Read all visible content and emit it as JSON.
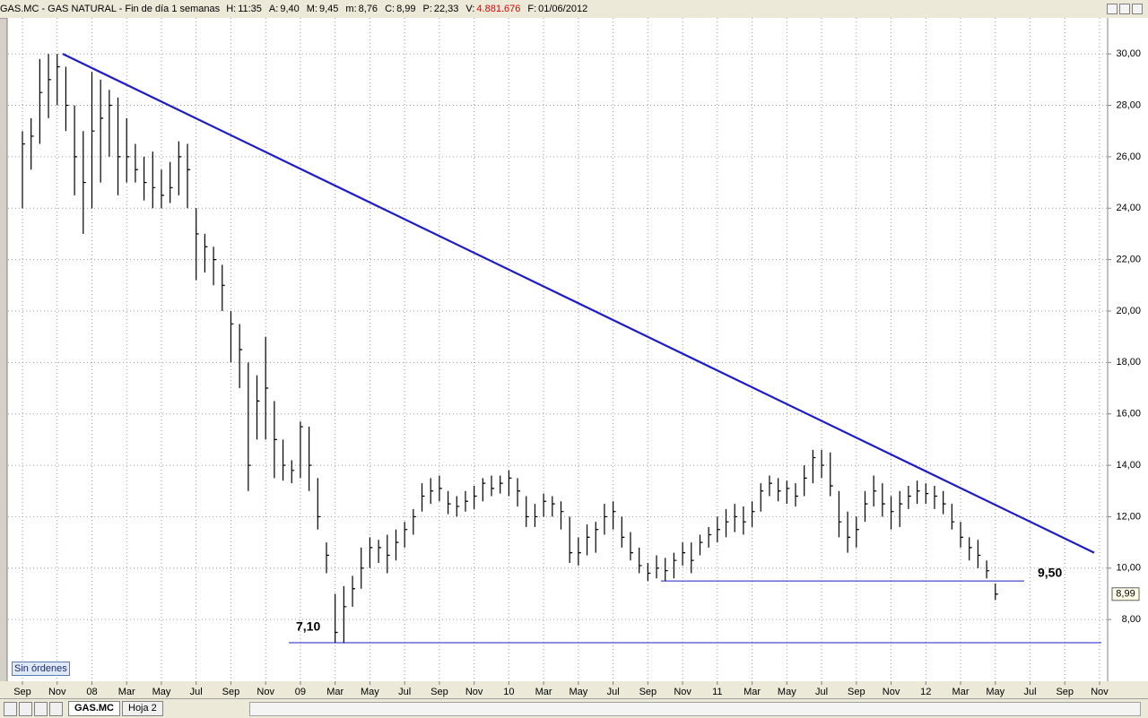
{
  "header": {
    "symbol_line": "GAS.MC - GAS NATURAL - Fin de día 1 semanas",
    "fields": [
      {
        "key": "H:",
        "value": "11:35"
      },
      {
        "key": "A:",
        "value": "9,40"
      },
      {
        "key": "M:",
        "value": "9,45"
      },
      {
        "key": "m:",
        "value": "8,76"
      },
      {
        "key": "C:",
        "value": "8,99"
      },
      {
        "key": "P:",
        "value": "22,33"
      },
      {
        "key": "V:",
        "value": "4.881.676"
      },
      {
        "key": "F:",
        "value": "01/06/2012"
      }
    ]
  },
  "chart_data": {
    "type": "ohlc",
    "categories": [
      "Sep",
      null,
      null,
      null,
      "Nov",
      null,
      null,
      null,
      "08",
      null,
      null,
      null,
      "Mar",
      null,
      null,
      null,
      "May",
      null,
      null,
      null,
      "Jul",
      null,
      null,
      null,
      "Sep",
      null,
      null,
      null,
      "Nov",
      null,
      null,
      null,
      "09",
      null,
      null,
      null,
      "Mar",
      null,
      null,
      null,
      "May",
      null,
      null,
      null,
      "Jul",
      null,
      null,
      null,
      "Sep",
      null,
      null,
      null,
      "Nov",
      null,
      null,
      null,
      "10",
      null,
      null,
      null,
      "Mar",
      null,
      null,
      null,
      "May",
      null,
      null,
      null,
      "Jul",
      null,
      null,
      null,
      "Sep",
      null,
      null,
      null,
      "Nov",
      null,
      null,
      null,
      "11",
      null,
      null,
      null,
      "Mar",
      null,
      null,
      null,
      "May",
      null,
      null,
      null,
      "Jul",
      null,
      null,
      null,
      "Sep",
      null,
      null,
      null,
      "Nov",
      null,
      null,
      null,
      "12",
      null,
      null,
      null,
      "Mar",
      null,
      null,
      null,
      "May",
      null,
      null,
      null,
      "Jul",
      null,
      null,
      null,
      "Sep",
      null,
      null,
      null,
      "Nov"
    ],
    "high": [
      27,
      27.5,
      29.8,
      30,
      30,
      29.5,
      28,
      27,
      29.3,
      29,
      28.6,
      28.3,
      27.5,
      26.5,
      26,
      26.2,
      25.5,
      25.8,
      26.6,
      26.5,
      24,
      23,
      22.5,
      21.8,
      20,
      19.5,
      18,
      17.5,
      19,
      16.5,
      15,
      14.2,
      15.7,
      15.5,
      13.5,
      11,
      9,
      9.3,
      9.7,
      10.8,
      11.2,
      11.1,
      11.3,
      11.5,
      11.8,
      12.3,
      13.3,
      13.5,
      13.6,
      13,
      12.8,
      13,
      13.2,
      13.5,
      13.6,
      13.6,
      13.8,
      13.5,
      12.8,
      12.5,
      12.9,
      12.8,
      12.6,
      12,
      11.2,
      11.7,
      11.8,
      12.5,
      12.6,
      12,
      11.4,
      10.8,
      10.2,
      10.5,
      10.4,
      10.6,
      11,
      11,
      11.3,
      11.6,
      12,
      12.3,
      12.5,
      12.4,
      12.6,
      13.3,
      13.6,
      13.5,
      13.4,
      13.3,
      14,
      14.6,
      14.6,
      14.5,
      13,
      12.2,
      12,
      13,
      13.6,
      13.3,
      12.8,
      13,
      13.2,
      13.4,
      13.3,
      13.2,
      13,
      12.5,
      11.8,
      11.2,
      11.1,
      10.3,
      9.4,
      null,
      null,
      null,
      null,
      null,
      null,
      null,
      null,
      null,
      null,
      null,
      null
    ],
    "low": [
      24,
      25.5,
      26.5,
      27.5,
      28,
      27,
      24.5,
      23,
      24,
      25,
      26,
      24.5,
      25,
      25,
      24.3,
      24,
      24,
      24.2,
      24.5,
      24,
      21.2,
      21.5,
      21,
      20,
      18,
      17,
      13,
      15,
      15,
      13.5,
      13.4,
      13.3,
      13.5,
      13,
      11.5,
      9.8,
      7.1,
      7.1,
      8.5,
      9.2,
      10,
      10.2,
      9.8,
      10.3,
      10.8,
      11.3,
      12.2,
      12.5,
      12.6,
      12.1,
      12,
      12.2,
      12.3,
      12.6,
      12.8,
      12.9,
      12.8,
      12.4,
      11.6,
      11.6,
      12,
      12,
      11.5,
      10.2,
      10.1,
      10.5,
      10.6,
      11.3,
      11.5,
      10.8,
      10.3,
      9.8,
      9.5,
      9.6,
      9.5,
      9.6,
      10.1,
      9.8,
      10.5,
      10.8,
      11,
      11.2,
      11.4,
      11.3,
      11.6,
      12.2,
      12.8,
      12.6,
      12.5,
      12.4,
      12.8,
      13.3,
      13.5,
      12.8,
      11.2,
      10.6,
      10.8,
      11.8,
      12.4,
      12,
      11.5,
      11.6,
      12.3,
      12.5,
      12.5,
      12.3,
      12.1,
      11.5,
      10.8,
      10.3,
      10,
      9.6,
      8.76,
      null,
      null,
      null,
      null,
      null,
      null,
      null,
      null,
      null,
      null,
      null,
      null
    ],
    "close": [
      26.5,
      26.8,
      28.5,
      29,
      29.5,
      28,
      26,
      25,
      27,
      27.5,
      28,
      26,
      26,
      25.5,
      25,
      24.8,
      24.5,
      24.8,
      26,
      25.5,
      23,
      22.5,
      22,
      21,
      19.5,
      18.5,
      14,
      16.5,
      17,
      15,
      14,
      13.8,
      15.5,
      14,
      12,
      10.5,
      7.5,
      8.5,
      9.2,
      10,
      10.8,
      10.8,
      10.5,
      11,
      11.5,
      12,
      12.8,
      13,
      13.1,
      12.5,
      12.4,
      12.6,
      12.8,
      13.3,
      13.1,
      13.3,
      13.5,
      13,
      12,
      12,
      12.6,
      12.5,
      12.2,
      10.6,
      10.6,
      11.2,
      11.5,
      12,
      12.2,
      11.2,
      10.6,
      10.1,
      9.8,
      10,
      9.9,
      10.3,
      10.6,
      10.3,
      11,
      11.3,
      11.5,
      11.8,
      12,
      11.8,
      12.2,
      13,
      13.3,
      13,
      13.1,
      12.8,
      13.5,
      14.3,
      14,
      13.2,
      11.8,
      11.2,
      11.5,
      12.5,
      13,
      12.5,
      12.2,
      12.5,
      12.8,
      13,
      12.9,
      12.8,
      12.5,
      11.8,
      11.2,
      10.8,
      10.5,
      9.9,
      8.99,
      null,
      null,
      null,
      null,
      null,
      null,
      null,
      null,
      null,
      null,
      null,
      null
    ],
    "color": "#000000",
    "ylim": [
      5.6,
      31.4
    ],
    "yticks": [
      {
        "value": 8,
        "label": "8,00"
      },
      {
        "value": 10,
        "label": "10,00"
      },
      {
        "value": 12,
        "label": "12,00"
      },
      {
        "value": 14,
        "label": "14,00"
      },
      {
        "value": 16,
        "label": "16,00"
      },
      {
        "value": 18,
        "label": "18,00"
      },
      {
        "value": 20,
        "label": "20,00"
      },
      {
        "value": 22,
        "label": "22,00"
      },
      {
        "value": 24,
        "label": "24,00"
      },
      {
        "value": 26,
        "label": "26,00"
      },
      {
        "value": 28,
        "label": "28,00"
      },
      {
        "value": 30,
        "label": "30,00"
      }
    ],
    "grid": true,
    "trendline": {
      "start": 30.0,
      "end": 10.6,
      "color": "#1c1cc8"
    },
    "support_lines": [
      {
        "value": 7.1,
        "label": "7,10"
      },
      {
        "value": 9.5,
        "label": "9,50"
      }
    ],
    "support_color": "#1c1cc8",
    "annotation_color": "#e00000",
    "last_price": {
      "value": 8.99,
      "label": "8,99"
    }
  },
  "orders_button": "Sin órdenes",
  "sheet_tabs": [
    "GAS.MC",
    "Hoja 2"
  ]
}
